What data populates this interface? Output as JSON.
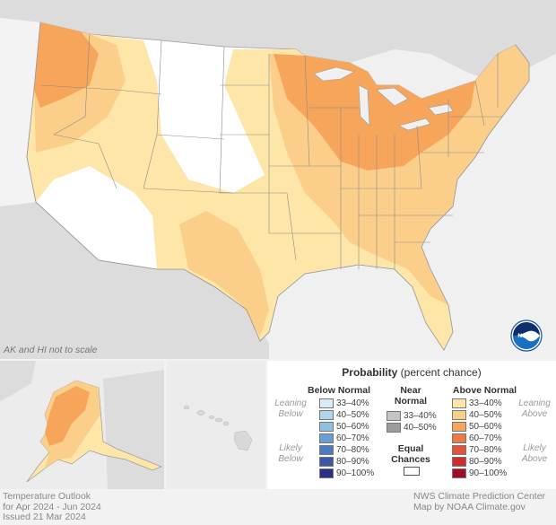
{
  "scale_note": "AK and HI not to scale",
  "footer_left": [
    "Temperature Outlook",
    "for Apr 2024 - Jun 2024",
    "Issued 21 Mar 2024"
  ],
  "footer_right": [
    "NWS Climate Prediction Center",
    "Map by NOAA Climate.gov"
  ],
  "logo_text": "NOAA",
  "legend": {
    "title_bold": "Probability",
    "title_rest": "(percent chance)",
    "below": {
      "header": "Below Normal",
      "leaning": [
        "Leaning",
        "Below"
      ],
      "likely": [
        "Likely",
        "Below"
      ],
      "rows": [
        {
          "label": "33–40%",
          "color": "#d6ecf8"
        },
        {
          "label": "40–50%",
          "color": "#b0d6ee"
        },
        {
          "label": "50–60%",
          "color": "#8ec0e2"
        },
        {
          "label": "60–70%",
          "color": "#6a9fd2"
        },
        {
          "label": "70–80%",
          "color": "#4b7cc0"
        },
        {
          "label": "80–90%",
          "color": "#3a57a8"
        },
        {
          "label": "90–100%",
          "color": "#28308a"
        }
      ]
    },
    "near": {
      "header": [
        "Near",
        "Normal"
      ],
      "rows": [
        {
          "label": "33–40%",
          "color": "#c4c4c4"
        },
        {
          "label": "40–50%",
          "color": "#9c9c9c"
        }
      ],
      "equal_header": [
        "Equal",
        "Chances"
      ],
      "equal_color": "#ffffff"
    },
    "above": {
      "header": "Above Normal",
      "leaning": [
        "Leaning",
        "Above"
      ],
      "likely": [
        "Likely",
        "Above"
      ],
      "rows": [
        {
          "label": "33–40%",
          "color": "#fde6a8"
        },
        {
          "label": "40–50%",
          "color": "#fbcf8a"
        },
        {
          "label": "50–60%",
          "color": "#f8a55c"
        },
        {
          "label": "60–70%",
          "color": "#ef7a45"
        },
        {
          "label": "70–80%",
          "color": "#e1533a"
        },
        {
          "label": "80–90%",
          "color": "#cc2e2e"
        },
        {
          "label": "90–100%",
          "color": "#9e0f22"
        }
      ]
    }
  }
}
